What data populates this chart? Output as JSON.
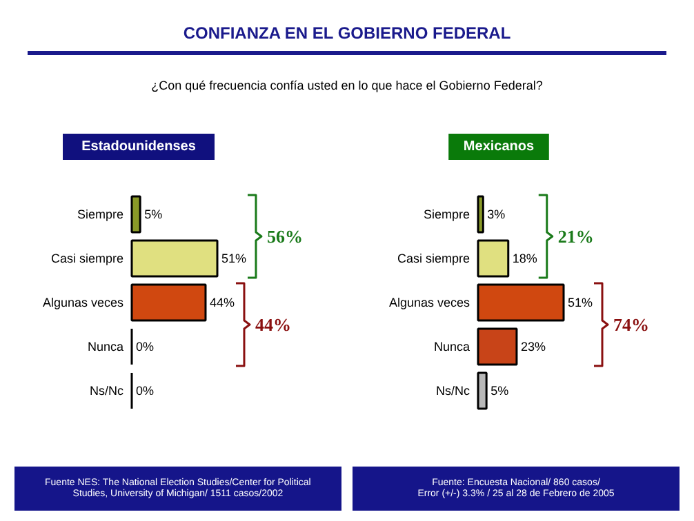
{
  "chart_data": [
    {
      "type": "other",
      "title": "CONFIANZA EN EL GOBIERNO FEDERAL",
      "subtitle": "¿Con qué frecuencia confía usted en lo que hace el Gobierno Federal?"
    },
    {
      "type": "bar",
      "orientation": "horizontal",
      "title": "Estadounidenses",
      "categories": [
        "Siempre",
        "Casi siempre",
        "Algunas veces",
        "Nunca",
        "Ns/Nc"
      ],
      "values": [
        5,
        51,
        44,
        0,
        0
      ],
      "value_labels": [
        "5%",
        "51%",
        "44%",
        "0%",
        "0%"
      ],
      "colors": [
        "#8a9a28",
        "#e0e080",
        "#d04810",
        "#c84418",
        "#b8b8b8"
      ],
      "annotations": [
        "56%",
        "44%",
        "Fuente NES: The National Election Studies/Center for Political\nStudies, University of Michigan/ 1511 casos/2002"
      ]
    },
    {
      "type": "bar",
      "orientation": "horizontal",
      "title": "Mexicanos",
      "categories": [
        "Siempre",
        "Casi siempre",
        "Algunas veces",
        "Nunca",
        "Ns/Nc"
      ],
      "values": [
        3,
        18,
        51,
        23,
        5
      ],
      "value_labels": [
        "3%",
        "18%",
        "51%",
        "23%",
        "5%"
      ],
      "colors": [
        "#8a9a28",
        "#e0e080",
        "#d04810",
        "#c84418",
        "#b8b8b8"
      ],
      "annotations": [
        "21%",
        "74%",
        "Fuente: Encuesta Nacional/ 860 casos/\nError (+/-) 3.3% / 25 al 28 de Febrero de 2005"
      ]
    }
  ]
}
